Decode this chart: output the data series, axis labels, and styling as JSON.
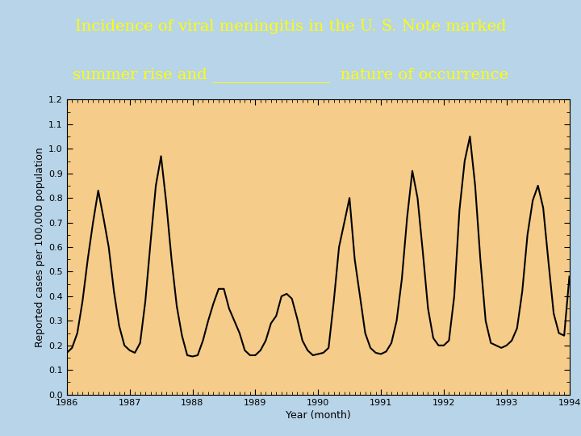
{
  "title_line1": "Incidence of viral meningitis in the U. S. Note marked",
  "title_line2": "summer rise and _______________  nature of occurrence",
  "xlabel": "Year (month)",
  "ylabel": "Reported cases per 100,000 population",
  "xlim": [
    1986.0,
    1994.0
  ],
  "ylim": [
    0.0,
    1.2
  ],
  "yticks": [
    0.0,
    0.1,
    0.2,
    0.3,
    0.4,
    0.5,
    0.6,
    0.7,
    0.8,
    0.9,
    1.0,
    1.1,
    1.2
  ],
  "xticks": [
    1986,
    1987,
    1988,
    1989,
    1990,
    1991,
    1992,
    1993,
    1994
  ],
  "plot_bg_color": "#f5cc8a",
  "outer_bg_color": "#b8d4e8",
  "title_bg_color": "#000080",
  "title_color": "#ffff00",
  "line_color": "#000000",
  "line_width": 1.5,
  "title_fontsize": 14,
  "axis_fontsize": 9,
  "tick_fontsize": 8,
  "data_x": [
    1986.0,
    1986.083,
    1986.167,
    1986.25,
    1986.333,
    1986.417,
    1986.5,
    1986.583,
    1986.667,
    1986.75,
    1986.833,
    1986.917,
    1987.0,
    1987.083,
    1987.167,
    1987.25,
    1987.333,
    1987.417,
    1987.5,
    1987.583,
    1987.667,
    1987.75,
    1987.833,
    1987.917,
    1988.0,
    1988.083,
    1988.167,
    1988.25,
    1988.333,
    1988.417,
    1988.5,
    1988.583,
    1988.667,
    1988.75,
    1988.833,
    1988.917,
    1989.0,
    1989.083,
    1989.167,
    1989.25,
    1989.333,
    1989.417,
    1989.5,
    1989.583,
    1989.667,
    1989.75,
    1989.833,
    1989.917,
    1990.0,
    1990.083,
    1990.167,
    1990.25,
    1990.333,
    1990.417,
    1990.5,
    1990.583,
    1990.667,
    1990.75,
    1990.833,
    1990.917,
    1991.0,
    1991.083,
    1991.167,
    1991.25,
    1991.333,
    1991.417,
    1991.5,
    1991.583,
    1991.667,
    1991.75,
    1991.833,
    1991.917,
    1992.0,
    1992.083,
    1992.167,
    1992.25,
    1992.333,
    1992.417,
    1992.5,
    1992.583,
    1992.667,
    1992.75,
    1992.833,
    1992.917,
    1993.0,
    1993.083,
    1993.167,
    1993.25,
    1993.333,
    1993.417,
    1993.5,
    1993.583,
    1993.667,
    1993.75,
    1993.833,
    1993.917,
    1994.0
  ],
  "data_y": [
    0.17,
    0.19,
    0.25,
    0.38,
    0.55,
    0.7,
    0.83,
    0.72,
    0.6,
    0.42,
    0.28,
    0.2,
    0.18,
    0.17,
    0.21,
    0.38,
    0.62,
    0.85,
    0.97,
    0.78,
    0.55,
    0.36,
    0.24,
    0.16,
    0.155,
    0.16,
    0.22,
    0.3,
    0.37,
    0.43,
    0.43,
    0.35,
    0.3,
    0.25,
    0.18,
    0.16,
    0.16,
    0.18,
    0.22,
    0.29,
    0.32,
    0.4,
    0.41,
    0.39,
    0.31,
    0.22,
    0.18,
    0.16,
    0.165,
    0.17,
    0.19,
    0.38,
    0.6,
    0.7,
    0.8,
    0.55,
    0.4,
    0.25,
    0.19,
    0.17,
    0.165,
    0.175,
    0.21,
    0.3,
    0.47,
    0.72,
    0.91,
    0.8,
    0.58,
    0.35,
    0.23,
    0.2,
    0.2,
    0.22,
    0.4,
    0.75,
    0.95,
    1.05,
    0.85,
    0.55,
    0.3,
    0.21,
    0.2,
    0.19,
    0.2,
    0.22,
    0.27,
    0.42,
    0.65,
    0.79,
    0.85,
    0.76,
    0.54,
    0.33,
    0.25,
    0.24,
    0.48
  ]
}
